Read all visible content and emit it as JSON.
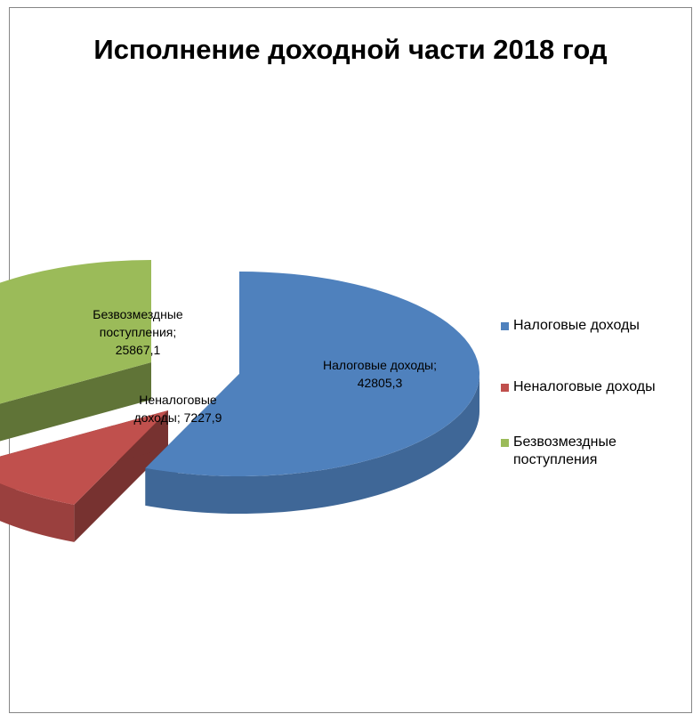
{
  "chart_data": {
    "type": "pie",
    "style": "3d-exploded",
    "title": "Исполнение доходной части 2018 год",
    "legend_position": "right",
    "slices": [
      {
        "name": "Налоговые доходы",
        "value": 42805.3,
        "label": "Налоговые доходы; 42805,3",
        "color": "#4f81bd"
      },
      {
        "name": "Неналоговые доходы",
        "value": 7227.9,
        "label": "Неналоговые доходы; 7227,9",
        "color": "#c0504d"
      },
      {
        "name": "Безвозмездные поступления",
        "value": 25867.1,
        "label": "Безвозмездные поступления; 25867,1",
        "color": "#9bbb59"
      }
    ]
  }
}
